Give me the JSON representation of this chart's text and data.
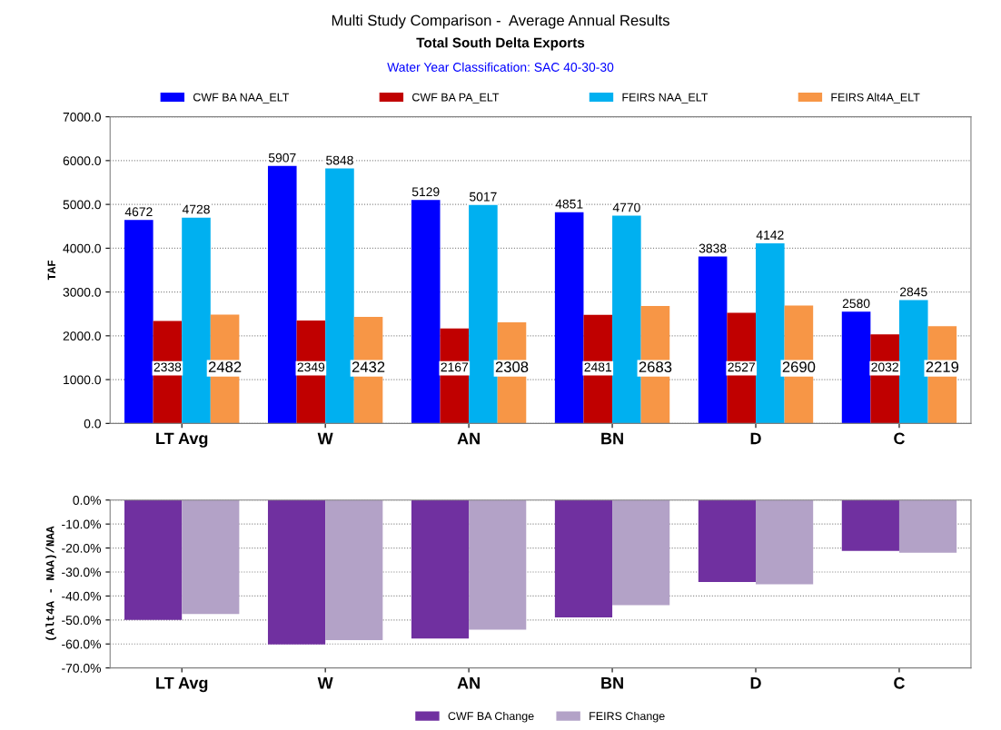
{
  "chart_data": [
    {
      "type": "bar",
      "title": "Multi Study Comparison -  Average Annual Results",
      "subtitle": "Total South Delta Exports",
      "annotations": [
        "Water Year Classification: SAC 40-30-30"
      ],
      "ylabel": "TAF",
      "categories": [
        "LT Avg",
        "W",
        "AN",
        "BN",
        "D",
        "C"
      ],
      "series": [
        {
          "name": "CWF BA NAA_ELT",
          "color": "#0000ff",
          "values": [
            4672,
            5907,
            5129,
            4851,
            3838,
            2580
          ]
        },
        {
          "name": "CWF BA PA_ELT",
          "color": "#c00000",
          "values": [
            2338,
            2349,
            2167,
            2481,
            2527,
            2032
          ]
        },
        {
          "name": "FEIRS NAA_ELT",
          "color": "#00b0f0",
          "values": [
            4728,
            5848,
            5017,
            4770,
            4142,
            2845
          ]
        },
        {
          "name": "FEIRS Alt4A_ELT",
          "color": "#f79646",
          "values": [
            2482,
            2432,
            2308,
            2683,
            2690,
            2219
          ]
        }
      ],
      "ylim": [
        0,
        7000
      ],
      "yticks": [
        {
          "value": 0,
          "label": "0.0"
        },
        {
          "value": 1000,
          "label": "1000.0"
        },
        {
          "value": 2000,
          "label": "2000.0"
        },
        {
          "value": 3000,
          "label": "3000.0"
        },
        {
          "value": 4000,
          "label": "4000.0"
        },
        {
          "value": 5000,
          "label": "5000.0"
        },
        {
          "value": 6000,
          "label": "6000.0"
        },
        {
          "value": 7000,
          "label": "7000.0"
        }
      ],
      "grid": "y",
      "legend": "top",
      "data_labels": true
    },
    {
      "type": "bar",
      "ylabel": "(Alt4A - NAA)/NAA",
      "categories": [
        "LT Avg",
        "W",
        "AN",
        "BN",
        "D",
        "C"
      ],
      "series": [
        {
          "name": "CWF BA Change",
          "color": "#7030a0",
          "values": [
            -50.0,
            -60.2,
            -57.7,
            -48.9,
            -34.2,
            -21.2
          ]
        },
        {
          "name": "FEIRS Change",
          "color": "#b3a2c7",
          "values": [
            -47.5,
            -58.4,
            -54.0,
            -43.8,
            -35.1,
            -22.0
          ]
        }
      ],
      "ylim": [
        -70,
        0
      ],
      "yticks": [
        {
          "value": -70,
          "label": "-70.0%"
        },
        {
          "value": -60,
          "label": "-60.0%"
        },
        {
          "value": -50,
          "label": "-50.0%"
        },
        {
          "value": -40,
          "label": "-40.0%"
        },
        {
          "value": -30,
          "label": "-30.0%"
        },
        {
          "value": -20,
          "label": "-20.0%"
        },
        {
          "value": -10,
          "label": "-10.0%"
        },
        {
          "value": 0,
          "label": "0.0%"
        }
      ],
      "grid": "y",
      "legend": "bottom"
    }
  ]
}
